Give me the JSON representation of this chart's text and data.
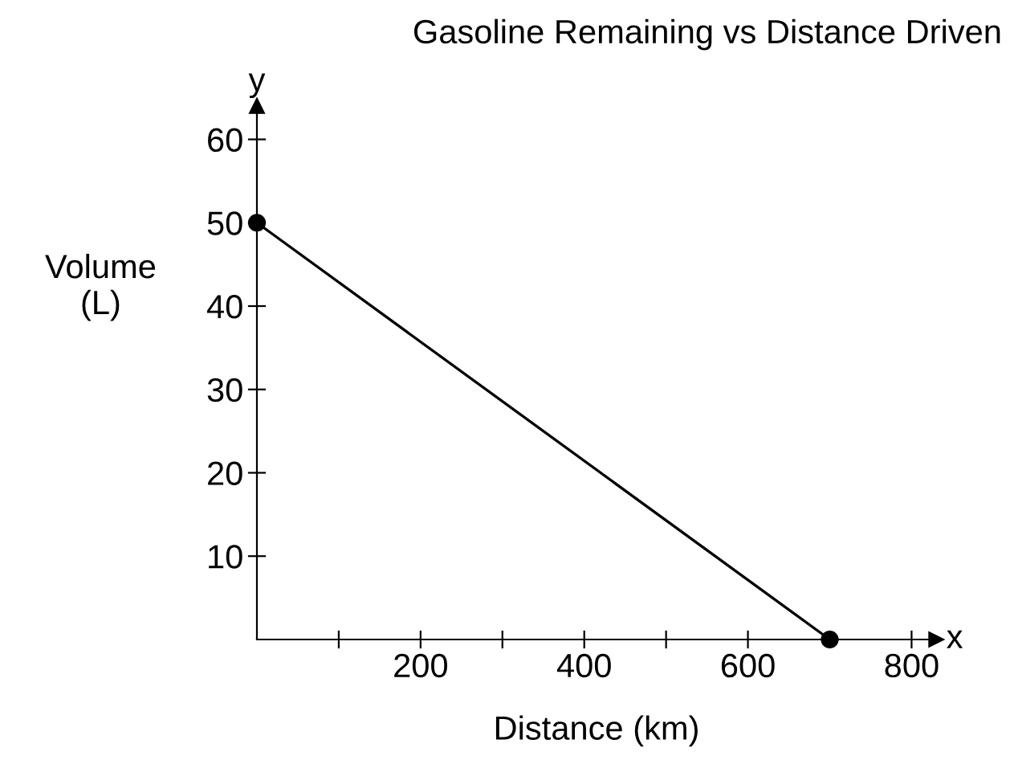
{
  "chart_data": {
    "type": "line",
    "title": "Gasoline Remaining vs Distance Driven",
    "xlabel": "Distance (km)",
    "ylabel": "Volume\n(L)",
    "annotations": [
      "x",
      "y"
    ],
    "x": [
      0,
      700
    ],
    "series": [
      {
        "color": "#000000",
        "values": [
          50,
          0
        ]
      }
    ],
    "marker": "circle",
    "line_style": "solid",
    "grid": false,
    "xlim": [
      0,
      830
    ],
    "ylim": [
      0,
      64
    ],
    "xticks": [
      {
        "value": 100,
        "label": null
      },
      200,
      {
        "value": 300,
        "label": null
      },
      400,
      {
        "value": 500,
        "label": null
      },
      600,
      {
        "value": 700,
        "label": null
      },
      800
    ],
    "yticks": [
      10,
      20,
      30,
      40,
      50,
      60
    ]
  }
}
